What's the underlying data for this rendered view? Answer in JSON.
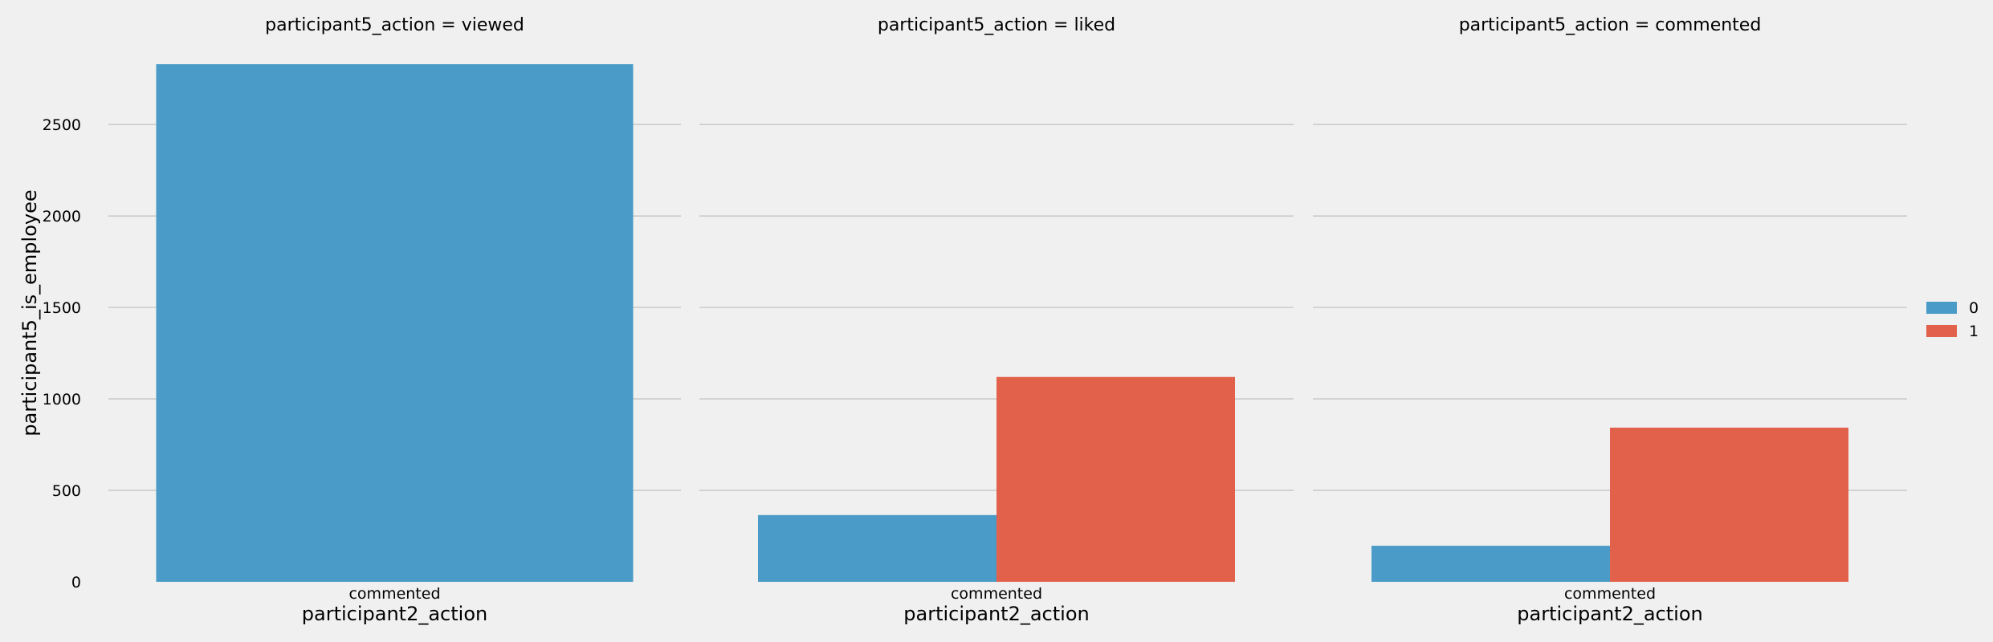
{
  "chart_data": {
    "type": "bar",
    "ylabel": "participant5_is_employee",
    "ylim": [
      0,
      2830
    ],
    "yticks": [
      0,
      500,
      1000,
      1500,
      2000,
      2500
    ],
    "grid": true,
    "legend_placement": "right",
    "hue_levels": [
      {
        "name": "0",
        "color": "#4a9bc7"
      },
      {
        "name": "1",
        "color": "#e2614a"
      }
    ],
    "facets": [
      {
        "title": "participant5_action = viewed",
        "xlabel": "participant2_action",
        "categories": [
          "commented"
        ],
        "series": [
          {
            "name": "0",
            "values": [
              2830
            ]
          }
        ]
      },
      {
        "title": "participant5_action = liked",
        "xlabel": "participant2_action",
        "categories": [
          "commented"
        ],
        "series": [
          {
            "name": "0",
            "values": [
              365
            ]
          },
          {
            "name": "1",
            "values": [
              1120
            ]
          }
        ]
      },
      {
        "title": "participant5_action = commented",
        "xlabel": "participant2_action",
        "categories": [
          "commented"
        ],
        "series": [
          {
            "name": "0",
            "values": [
              197
            ]
          },
          {
            "name": "1",
            "values": [
              843
            ]
          }
        ]
      }
    ]
  }
}
